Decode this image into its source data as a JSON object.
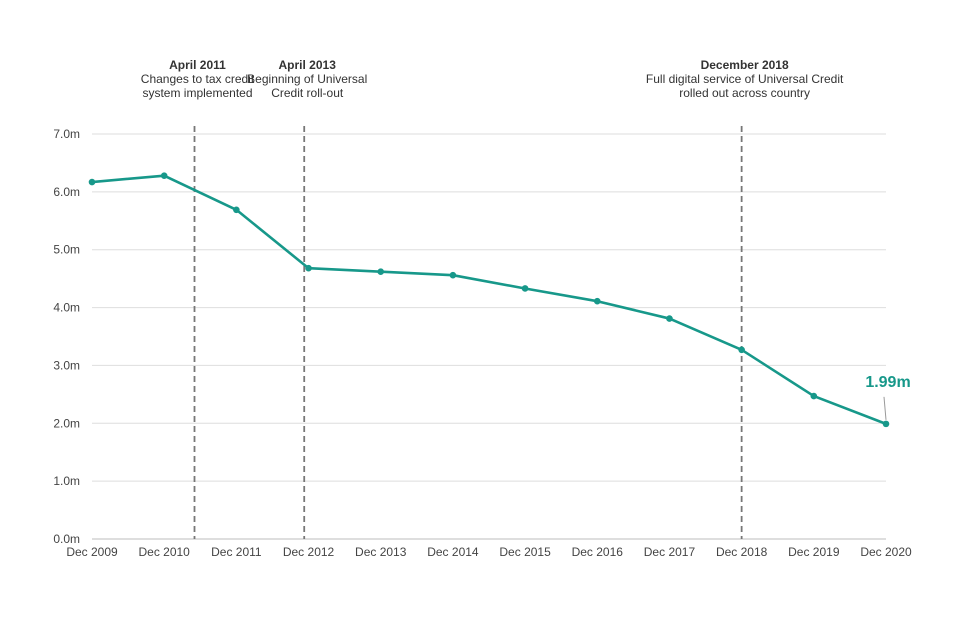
{
  "chart_data": {
    "type": "line",
    "title": "",
    "xlabel": "",
    "ylabel": "",
    "categories": [
      "Dec 2009",
      "Dec 2010",
      "Dec 2011",
      "Dec 2012",
      "Dec 2013",
      "Dec 2014",
      "Dec 2015",
      "Dec 2016",
      "Dec 2017",
      "Dec 2018",
      "Dec 2019",
      "Dec 2020"
    ],
    "series": [
      {
        "values": [
          6.17,
          6.28,
          5.69,
          4.68,
          4.62,
          4.56,
          4.33,
          4.11,
          3.81,
          3.27,
          2.47,
          1.99
        ],
        "color": "#17988a"
      }
    ],
    "ylim": [
      0,
      7
    ],
    "yticks": [
      {
        "value": 0,
        "label": "0.0m"
      },
      {
        "value": 1,
        "label": "1.0m"
      },
      {
        "value": 2,
        "label": "2.0m"
      },
      {
        "value": 3,
        "label": "3.0m"
      },
      {
        "value": 4,
        "label": "4.0m"
      },
      {
        "value": 5,
        "label": "5.0m"
      },
      {
        "value": 6,
        "label": "6.0m"
      },
      {
        "value": 7,
        "label": "7.0m"
      }
    ],
    "grid": true,
    "legend": "none",
    "annotations": [
      {
        "x": 1.42,
        "title": "April 2011",
        "lines": [
          "Changes to tax credit",
          "system implemented"
        ]
      },
      {
        "x": 2.94,
        "title": "April 2013",
        "lines": [
          "Beginning of Universal",
          "Credit roll-out"
        ]
      },
      {
        "x": 9.0,
        "title": "December 2018",
        "lines": [
          "Full digital service of Universal Credit",
          "rolled out across country"
        ]
      }
    ],
    "data_label": {
      "index": 11,
      "text": "1.99m",
      "color": "#17988a"
    }
  }
}
